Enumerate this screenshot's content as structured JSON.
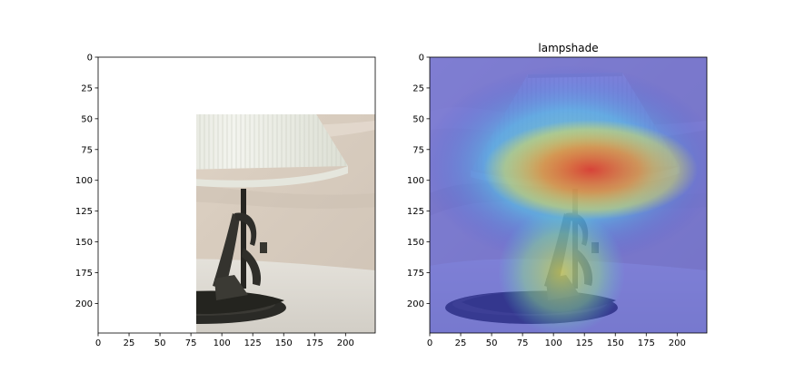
{
  "chart_data": [
    {
      "type": "image",
      "title": "",
      "xlabel": "",
      "ylabel": "",
      "xlim": [
        0,
        224
      ],
      "ylim": [
        224,
        0
      ],
      "xticks": [
        0,
        25,
        50,
        75,
        100,
        125,
        150,
        175,
        200
      ],
      "yticks": [
        0,
        25,
        50,
        75,
        100,
        125,
        150,
        175,
        200
      ],
      "content": "photo of a table lamp with a pleated white lampshade"
    },
    {
      "type": "heatmap",
      "title": "lampshade",
      "xlabel": "",
      "ylabel": "",
      "xlim": [
        0,
        224
      ],
      "ylim": [
        224,
        0
      ],
      "xticks": [
        0,
        25,
        50,
        75,
        100,
        125,
        150,
        175,
        200
      ],
      "yticks": [
        0,
        25,
        50,
        75,
        100,
        125,
        150,
        175,
        200
      ],
      "colormap": "jet",
      "overlay": "class activation heatmap over the lamp photo",
      "peak_region": {
        "x": [
          70,
          190
        ],
        "y": [
          85,
          115
        ]
      }
    }
  ],
  "colors": {
    "axis": "#000000",
    "background": "#ffffff",
    "wall": "#ddd2c6",
    "shade": "#eceee6",
    "lamp_metal": "#2b2b27",
    "heat_low": "#3b3fd6",
    "heat_mid": "#6fe0c8",
    "heat_high": "#e8432c"
  }
}
